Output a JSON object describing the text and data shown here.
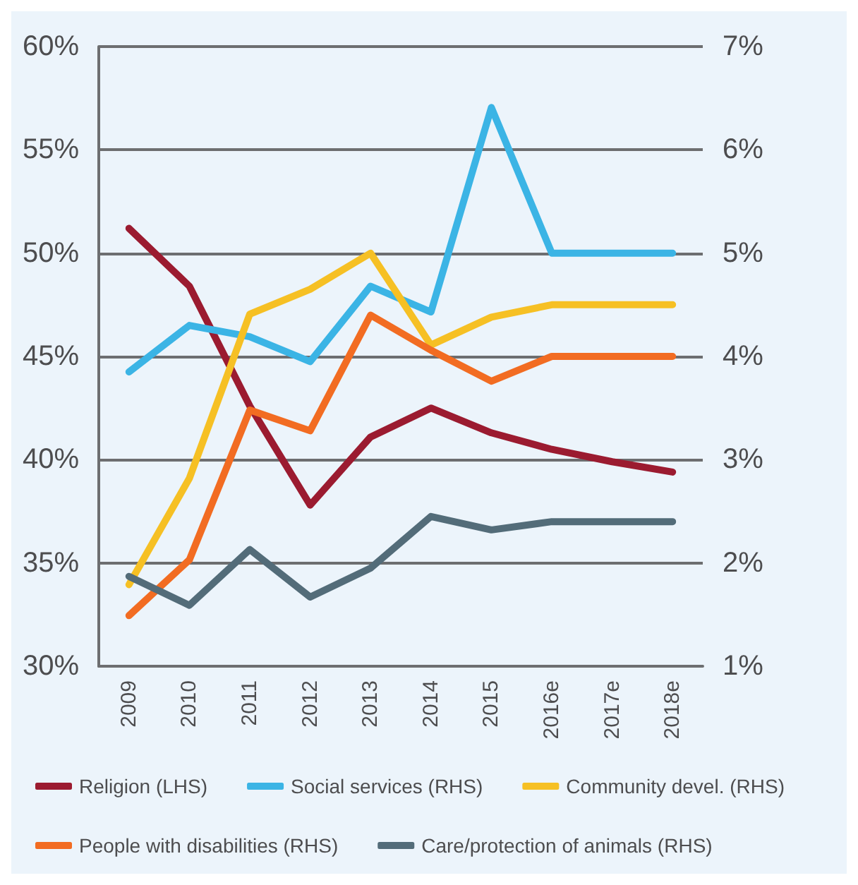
{
  "chart_data": {
    "type": "line",
    "categories": [
      "2009",
      "2010",
      "2011",
      "2012",
      "2013",
      "2014",
      "2015",
      "2016e",
      "2017e",
      "2018e"
    ],
    "series": [
      {
        "name": "Religion (LHS)",
        "color": "#9b1b30",
        "values": [
          51.2,
          48.4,
          42.6,
          37.8,
          41.1,
          42.5,
          41.3,
          40.5,
          39.9,
          39.4
        ]
      },
      {
        "name": "Social services (RHS)",
        "color": "#3bb4e5",
        "axis": "y2",
        "values": [
          3.85,
          4.3,
          4.19,
          3.95,
          4.68,
          4.43,
          6.41,
          5.0,
          5.0,
          5.0
        ]
      },
      {
        "name": "Community devel. (RHS)",
        "color": "#f6c024",
        "axis": "y2",
        "values": [
          1.79,
          2.82,
          4.41,
          4.65,
          5.0,
          4.11,
          4.38,
          4.5,
          4.5,
          4.5
        ]
      },
      {
        "name": "People with disabilities (RHS)",
        "color": "#f26c22",
        "axis": "y2",
        "values": [
          1.49,
          2.03,
          3.48,
          3.28,
          4.4,
          4.06,
          3.76,
          4.0,
          4.0,
          4.0
        ]
      },
      {
        "name": "Care/protection of animals (RHS)",
        "color": "#536c79",
        "axis": "y2",
        "values": [
          1.87,
          1.59,
          2.13,
          1.67,
          1.95,
          2.45,
          2.32,
          2.4,
          2.4,
          2.4
        ]
      }
    ],
    "ylim": [
      30,
      60
    ],
    "yticks": [
      {
        "value": 30,
        "label": "30%"
      },
      {
        "value": 35,
        "label": "35%"
      },
      {
        "value": 40,
        "label": "40%"
      },
      {
        "value": 45,
        "label": "45%"
      },
      {
        "value": 50,
        "label": "50%"
      },
      {
        "value": 55,
        "label": "55%"
      },
      {
        "value": 60,
        "label": "60%"
      }
    ],
    "y2lim": [
      1,
      7
    ],
    "y2ticks": [
      {
        "value": 1,
        "label": "1%"
      },
      {
        "value": 2,
        "label": "2%"
      },
      {
        "value": 3,
        "label": "3%"
      },
      {
        "value": 4,
        "label": "4%"
      },
      {
        "value": 5,
        "label": "5%"
      },
      {
        "value": 6,
        "label": "6%"
      },
      {
        "value": 7,
        "label": "7%"
      }
    ],
    "grid": "y",
    "legend": "bottom",
    "marker": "none",
    "line_style": "solid"
  }
}
